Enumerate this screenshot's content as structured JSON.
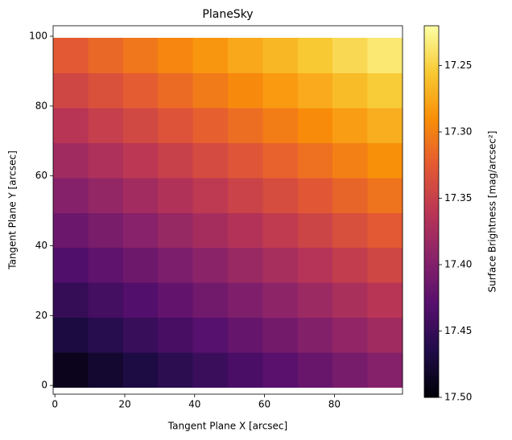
{
  "chart_data": {
    "type": "heatmap",
    "title": "PlaneSky",
    "x_label": "Tangent Plane X [arcsec]",
    "y_label": "Tangent Plane Y [arcsec]",
    "colorbar_label": "Surface Brightness [mag/arcsec²]",
    "colormap": "inferno",
    "colorbar_inverted": true,
    "x_edges": [
      -0.5,
      9.5,
      19.5,
      29.5,
      39.5,
      49.5,
      59.5,
      69.5,
      79.5,
      89.5,
      99.5
    ],
    "y_edges": [
      -0.5,
      9.5,
      19.5,
      29.5,
      39.5,
      49.5,
      59.5,
      69.5,
      79.5,
      89.5,
      99.5
    ],
    "values": [
      [
        17.487,
        17.477,
        17.467,
        17.457,
        17.447,
        17.437,
        17.427,
        17.417,
        17.407,
        17.397
      ],
      [
        17.469,
        17.459,
        17.449,
        17.439,
        17.429,
        17.419,
        17.409,
        17.399,
        17.389,
        17.379
      ],
      [
        17.451,
        17.441,
        17.431,
        17.421,
        17.411,
        17.401,
        17.391,
        17.381,
        17.371,
        17.361
      ],
      [
        17.433,
        17.423,
        17.413,
        17.403,
        17.393,
        17.383,
        17.373,
        17.363,
        17.353,
        17.343
      ],
      [
        17.415,
        17.405,
        17.395,
        17.385,
        17.375,
        17.365,
        17.355,
        17.345,
        17.335,
        17.325
      ],
      [
        17.397,
        17.387,
        17.377,
        17.367,
        17.357,
        17.347,
        17.337,
        17.327,
        17.317,
        17.307
      ],
      [
        17.379,
        17.369,
        17.359,
        17.349,
        17.339,
        17.329,
        17.319,
        17.309,
        17.299,
        17.289
      ],
      [
        17.361,
        17.351,
        17.341,
        17.331,
        17.321,
        17.311,
        17.301,
        17.291,
        17.281,
        17.271
      ],
      [
        17.343,
        17.333,
        17.323,
        17.313,
        17.303,
        17.293,
        17.283,
        17.273,
        17.263,
        17.253
      ],
      [
        17.325,
        17.315,
        17.305,
        17.295,
        17.285,
        17.275,
        17.265,
        17.255,
        17.245,
        17.235
      ]
    ],
    "xlim": [
      -0.5,
      99.5
    ],
    "ylim": [
      -2.5,
      103
    ],
    "xticks": [
      0,
      20,
      40,
      60,
      80
    ],
    "yticks": [
      0,
      20,
      40,
      60,
      80,
      100
    ],
    "clim": [
      17.22,
      17.5
    ],
    "cticks": [
      17.25,
      {
        "value": 17.3,
        "label": "17.30"
      },
      17.35,
      {
        "value": 17.4,
        "label": "17.40"
      },
      17.45,
      {
        "value": 17.5,
        "label": "17.50"
      }
    ]
  }
}
